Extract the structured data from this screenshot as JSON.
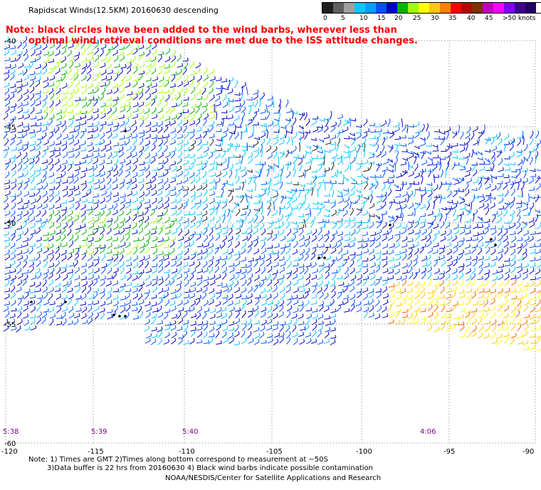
{
  "title": "Rapidscat Winds(12.5KM) 20160630 descending",
  "note": {
    "line1": "Note: black circles have been added to the wind barbs, wherever less than",
    "line2": "optimal wind retrieval conditions are met due to the ISS attitude changes."
  },
  "legend": {
    "labels": [
      "0",
      "5",
      "10",
      "15",
      "20",
      "25",
      "30",
      "35",
      "40",
      "45",
      ">50 knots"
    ],
    "colors": [
      "#202020",
      "#606060",
      "#a0a0a0",
      "#00c8ff",
      "#00a0ff",
      "#0050ff",
      "#0000c8",
      "#00b400",
      "#a0ff00",
      "#ffff00",
      "#ffc800",
      "#ff8000",
      "#ff0000",
      "#c00000",
      "#803000",
      "#c000c0",
      "#ff00ff",
      "#8000ff",
      "#400090",
      "#200060"
    ]
  },
  "map": {
    "lat_labels": [
      "-40",
      "-45",
      "-50",
      "-55",
      "-60"
    ],
    "lon_labels": [
      "-120",
      "-115",
      "-110",
      "-105",
      "-100",
      "-95",
      "-90"
    ],
    "time_labels": [
      "5:38",
      "5:39",
      "5:40",
      "4:06"
    ],
    "grid_color": "#808080",
    "time_color": "#800080"
  },
  "footer": {
    "line1": "Note: 1) Times are GMT 2)Times along bottom correspond to measurement at ~50S",
    "line2": "3)Data buffer is 22 hrs from 20160630 4) Black wind barbs indicate possible contamination",
    "line3": "NOAA/NESDIS/Center for Satellite Applications and Research"
  }
}
